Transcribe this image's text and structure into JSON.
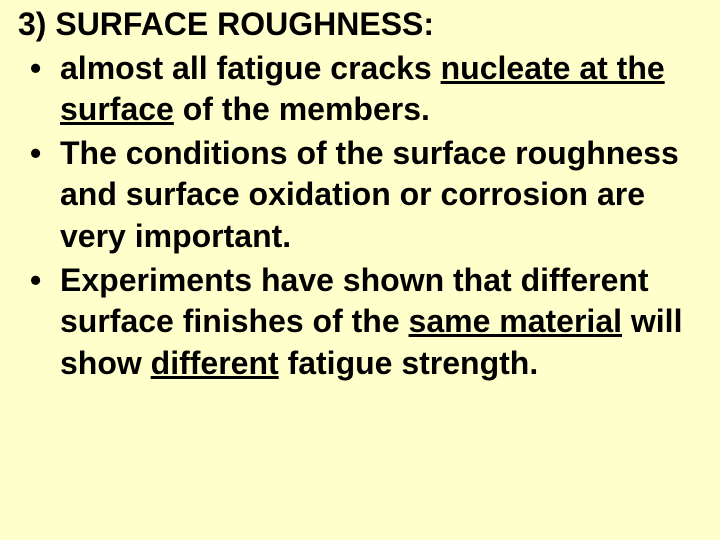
{
  "slide": {
    "background_color": "#ffffcc",
    "text_color": "#000000",
    "font_family": "Arial",
    "font_size_pt": 24,
    "font_weight": "bold",
    "heading": "3) SURFACE ROUGHNESS:",
    "bullets": [
      {
        "pre": "almost all fatigue cracks ",
        "u1": "nucleate at the surface",
        "post": " of the members."
      },
      {
        "full": "The conditions of the surface roughness and surface oxidation or corrosion are very important."
      },
      {
        "t1": "Experiments have shown that different surface finishes of the ",
        "u1": "same material",
        "t2": " will show ",
        "u2": "different",
        "t3": " fatigue strength."
      }
    ]
  }
}
